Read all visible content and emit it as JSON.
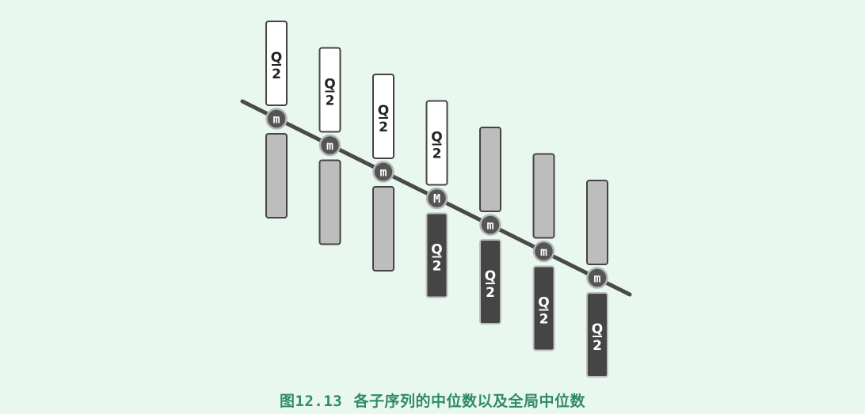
{
  "diagram": {
    "fraction": {
      "numerator": "Q",
      "denominator": "2"
    },
    "subseq_median_label": "m",
    "global_median_label": "M",
    "columns": [
      {
        "median": "m",
        "upper": "Q/2",
        "lower": ""
      },
      {
        "median": "m",
        "upper": "Q/2",
        "lower": ""
      },
      {
        "median": "m",
        "upper": "Q/2",
        "lower": ""
      },
      {
        "median": "M",
        "upper": "Q/2",
        "lower": "Q/2"
      },
      {
        "median": "m",
        "upper": "",
        "lower": "Q/2"
      },
      {
        "median": "m",
        "upper": "",
        "lower": "Q/2"
      },
      {
        "median": "m",
        "upper": "",
        "lower": "Q/2"
      }
    ],
    "colors": {
      "white_block": "#ffffff",
      "gray_block": "#bdbdbd",
      "dark_block": "#454545",
      "stroke": "#444444",
      "line": "#4a4a4a",
      "circle_fill": "#555555",
      "caption": "#2f8a6a"
    }
  },
  "caption": {
    "prefix": "图",
    "number": "12.13",
    "text": "各子序列的中位数以及全局中位数"
  }
}
